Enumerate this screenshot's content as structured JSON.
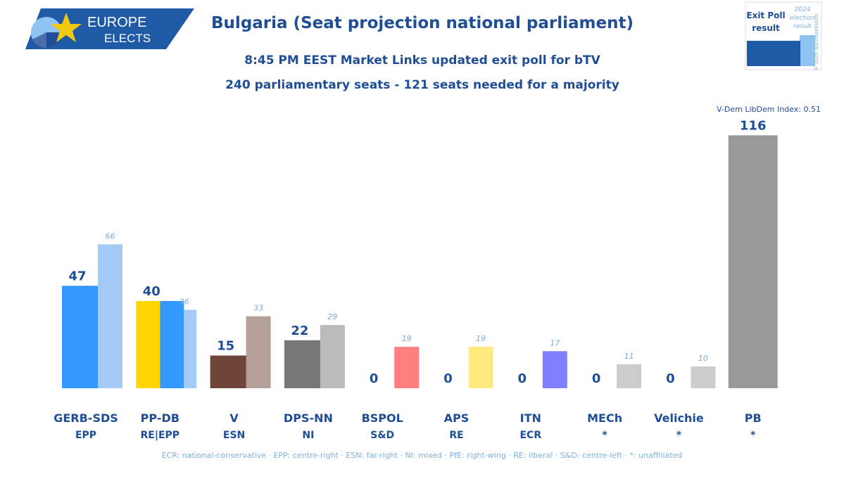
{
  "brand": {
    "line1": "EUROPE",
    "line2": "ELECTS",
    "colors": {
      "navy": "#1f4e96",
      "yellow": "#f2c80f",
      "light_blue": "#8fc3f2"
    }
  },
  "header": {
    "title": "Bulgaria (Seat projection national parliament)",
    "subtitle1": "8:45 PM EEST Market Links updated exit poll for bTV",
    "subtitle2": "240 parliamentary seats - 121 seats needed for a majority"
  },
  "legend": {
    "current": [
      "Exit Poll",
      "result"
    ],
    "previous": [
      "2024",
      "election",
      "result"
    ],
    "copyright": "© 2026 @EuropeElects"
  },
  "note": "V-Dem LibDem Index: 0.51",
  "footer": "ECR: national-conservative · EPP: centre-right · ESN: far-right · NI: mixed · PfE: right-wing · RE: liberal · S&D: centre-left · *: unaffiliated",
  "chart_data": {
    "type": "bar",
    "categories": [
      "GERB-SDS",
      "PP-DB",
      "V",
      "DPS-NN",
      "BSPOL",
      "APS",
      "ITN",
      "MECh",
      "Velichie",
      "PB"
    ],
    "groups": [
      "EPP",
      "RE|EPP",
      "ESN",
      "NI",
      "S&D",
      "RE",
      "ECR",
      "*",
      "*",
      "*"
    ],
    "series": [
      {
        "name": "Exit Poll result",
        "values": [
          47,
          40,
          15,
          22,
          0,
          0,
          0,
          0,
          0,
          116
        ]
      },
      {
        "name": "2024 election result",
        "values": [
          66,
          36,
          33,
          29,
          19,
          19,
          17,
          11,
          10,
          null
        ]
      }
    ],
    "colors": {
      "current": [
        "#3399ff",
        [
          "#ffd700",
          "#3399ff"
        ],
        "#6e4538",
        "#777777",
        "#ff7f7f",
        "#ffea7f",
        "#7f7fff",
        "#cccccc",
        "#cccccc",
        "#999999"
      ],
      "previous": [
        "#a3cbf5",
        "#a3cbf5",
        "#b3a099",
        "#bbbbbb",
        "#ff7f7f",
        "#ffea7f",
        "#7f7fff",
        "#cccccc",
        "#cccccc",
        null
      ]
    },
    "ylim": [
      0,
      120
    ]
  }
}
